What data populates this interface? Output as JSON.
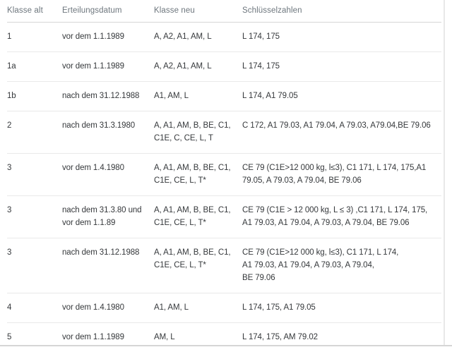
{
  "colors": {
    "background": "#ffffff",
    "header_text": "#6d767d",
    "body_text": "#35383b",
    "header_border": "#d6d6d6",
    "row_border": "#e9e9e9"
  },
  "table": {
    "columns": [
      "Klasse alt",
      "Erteilungsdatum",
      "Klasse neu",
      "Schlüsselzahlen"
    ],
    "rows": [
      {
        "klasse_alt": "1",
        "erteilungsdatum": "vor dem 1.1.1989",
        "klasse_neu": "A, A2, A1, AM, L",
        "schluesselzahlen": "L 174, 175"
      },
      {
        "klasse_alt": "1a",
        "erteilungsdatum": "vor dem 1.1.1989",
        "klasse_neu": "A, A2, A1, AM, L",
        "schluesselzahlen": "L 174, 175"
      },
      {
        "klasse_alt": "1b",
        "erteilungsdatum": "nach dem 31.12.1988",
        "klasse_neu": "A1, AM, L",
        "schluesselzahlen": "L 174, A1 79.05"
      },
      {
        "klasse_alt": "2",
        "erteilungsdatum": "nach dem 31.3.1980",
        "klasse_neu": "A, A1, AM, B, BE, C1,\nC1E, C, CE, L, T",
        "schluesselzahlen": "C 172, A1 79.03, A1 79.04, A 79.03, A79.04,BE 79.06"
      },
      {
        "klasse_alt": "3",
        "erteilungsdatum": "vor dem 1.4.1980",
        "klasse_neu": "A, A1, AM, B, BE, C1,\nC1E, CE, L, T*",
        "schluesselzahlen": "CE 79 (C1E>12 000 kg, l≤3), C1 171, L 174, 175,A1\n79.05, A 79.03, A 79.04, BE 79.06"
      },
      {
        "klasse_alt": "3",
        "erteilungsdatum": "nach dem 31.3.80 und\nvor dem 1.1.89",
        "klasse_neu": "A, A1, AM, B, BE, C1,\nC1E, CE, L, T*",
        "schluesselzahlen": "CE 79 (C1E > 12 000 kg, L ≤ 3) ,C1 171, L 174, 175,\nA1 79.03, A1 79.04, A 79.03, A 79.04, BE 79.06"
      },
      {
        "klasse_alt": "3",
        "erteilungsdatum": "nach dem 31.12.1988",
        "klasse_neu": "A, A1, AM, B, BE, C1,\nC1E, CE, L, T*",
        "schluesselzahlen": "CE 79 (C1E>12 000 kg, l≤3), C1 171, L 174,\nA1 79.03, A1 79.04, A 79.03, A 79.04,\nBE 79.06"
      },
      {
        "klasse_alt": "4",
        "erteilungsdatum": "vor dem 1.4.1980",
        "klasse_neu": "A1, AM, L",
        "schluesselzahlen": "L 174, 175, A1 79.05"
      },
      {
        "klasse_alt": "5",
        "erteilungsdatum": "vor dem 1.1.1989",
        "klasse_neu": "AM, L",
        "schluesselzahlen": "L 174, 175, AM 79.02"
      }
    ]
  }
}
